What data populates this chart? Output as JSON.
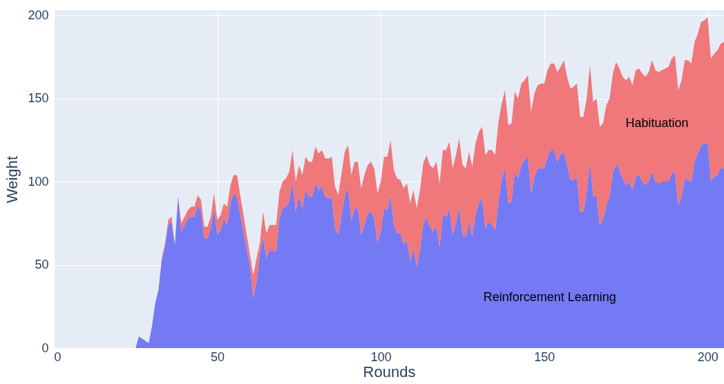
{
  "chart_data": {
    "type": "area",
    "stacked": true,
    "xlabel": "Rounds",
    "ylabel": "Weight",
    "x": [
      25,
      26,
      29,
      30,
      31,
      32,
      33,
      34,
      35,
      36,
      37,
      38,
      39,
      41,
      42,
      43,
      44,
      45,
      46,
      47,
      48,
      49,
      50,
      51,
      52,
      53,
      54,
      55,
      56,
      58,
      60,
      61,
      62,
      63,
      64,
      65,
      66,
      68,
      69,
      70,
      71,
      72,
      73,
      74,
      75,
      76,
      77,
      78,
      79,
      80,
      81,
      82,
      83,
      84,
      85,
      86,
      87,
      88,
      89,
      90,
      91,
      92,
      93,
      94,
      95,
      96,
      97,
      98,
      99,
      100,
      101,
      102,
      103,
      104,
      105,
      106,
      107,
      108,
      109,
      110,
      111,
      112,
      113,
      114,
      115,
      116,
      117,
      118,
      119,
      120,
      121,
      122,
      123,
      124,
      125,
      126,
      127,
      128,
      129,
      130,
      131,
      132,
      133,
      134,
      135,
      136,
      137,
      138,
      139,
      140,
      141,
      142,
      143,
      144,
      145,
      146,
      147,
      148,
      149,
      150,
      151,
      152,
      153,
      154,
      155,
      156,
      157,
      158,
      159,
      160,
      161,
      162,
      163,
      164,
      165,
      166,
      167,
      168,
      169,
      170,
      171,
      172,
      173,
      174,
      175,
      176,
      177,
      178,
      179,
      180,
      181,
      182,
      183,
      184,
      185,
      186,
      187,
      188,
      189,
      190,
      191,
      192,
      193,
      194,
      195,
      196,
      197,
      198,
      199,
      200,
      201,
      202,
      203,
      204,
      205
    ],
    "series": [
      {
        "name": "Reinforcement Learning",
        "color": "#7479f4",
        "values": [
          0,
          7,
          3,
          13,
          27,
          35,
          53,
          62,
          74,
          76,
          62,
          91,
          70,
          78,
          79,
          79,
          86,
          82,
          66,
          66,
          72,
          84,
          68,
          71,
          78,
          74,
          87,
          93,
          91,
          70,
          49,
          30,
          40,
          56,
          67,
          54,
          59,
          58,
          78,
          84,
          85,
          88,
          100,
          82,
          91,
          84,
          95,
          91,
          91,
          99,
          95,
          97,
          91,
          90,
          91,
          72,
          68,
          80,
          92,
          96,
          77,
          84,
          84,
          68,
          74,
          81,
          82,
          78,
          63,
          70,
          84,
          83,
          92,
          74,
          69,
          69,
          62,
          65,
          52,
          60,
          49,
          59,
          74,
          79,
          73,
          70,
          73,
          61,
          80,
          79,
          84,
          68,
          75,
          85,
          68,
          67,
          76,
          67,
          80,
          87,
          90,
          72,
          76,
          74,
          71,
          88,
          101,
          109,
          87,
          88,
          106,
          102,
          110,
          113,
          115,
          93,
          103,
          108,
          108,
          108,
          115,
          119,
          119,
          112,
          116,
          118,
          110,
          101,
          101,
          103,
          82,
          82,
          94,
          112,
          91,
          92,
          74,
          77,
          86,
          91,
          105,
          111,
          107,
          102,
          98,
          100,
          95,
          103,
          104,
          100,
          98,
          100,
          106,
          100,
          99,
          100,
          100,
          100,
          105,
          106,
          86,
          91,
          102,
          101,
          100,
          112,
          117,
          122,
          123,
          124,
          100,
          103,
          104,
          108,
          108
        ]
      },
      {
        "name": "Habituation",
        "color": "#f0777a",
        "values": [
          0,
          0,
          0,
          0,
          0,
          0,
          1,
          1,
          3,
          3,
          0,
          0,
          5,
          5,
          6,
          6,
          6,
          7,
          7,
          7,
          7,
          9,
          9,
          9,
          9,
          11,
          11,
          11,
          13,
          10,
          7,
          14,
          14,
          7,
          15,
          15,
          15,
          16,
          16,
          16,
          17,
          18,
          19,
          18,
          19,
          20,
          20,
          21,
          21,
          22,
          22,
          22,
          23,
          24,
          24,
          25,
          24,
          25,
          26,
          26,
          27,
          28,
          28,
          28,
          30,
          29,
          30,
          30,
          30,
          30,
          31,
          32,
          33,
          33,
          33,
          32,
          34,
          34,
          35,
          35,
          35,
          36,
          37,
          37,
          37,
          38,
          39,
          38,
          39,
          40,
          40,
          40,
          41,
          41,
          42,
          41,
          42,
          42,
          43,
          43,
          43,
          44,
          43,
          45,
          45,
          48,
          46,
          46,
          47,
          47,
          48,
          48,
          49,
          48,
          49,
          49,
          50,
          50,
          51,
          51,
          52,
          52,
          52,
          54,
          53,
          55,
          53,
          55,
          56,
          56,
          57,
          57,
          56,
          58,
          57,
          58,
          59,
          58,
          60,
          59,
          60,
          61,
          61,
          61,
          63,
          63,
          63,
          64,
          64,
          65,
          65,
          66,
          67,
          67,
          67,
          67,
          68,
          69,
          69,
          70,
          69,
          70,
          71,
          72,
          71,
          72,
          72,
          74,
          74,
          75,
          74,
          74,
          75,
          75,
          76
        ]
      }
    ],
    "xlim": [
      0,
      205
    ],
    "xticks": [
      0,
      50,
      100,
      150,
      200
    ],
    "ylim": [
      0,
      203
    ],
    "yticks": [
      0,
      50,
      100,
      150,
      200
    ],
    "grid": true
  }
}
